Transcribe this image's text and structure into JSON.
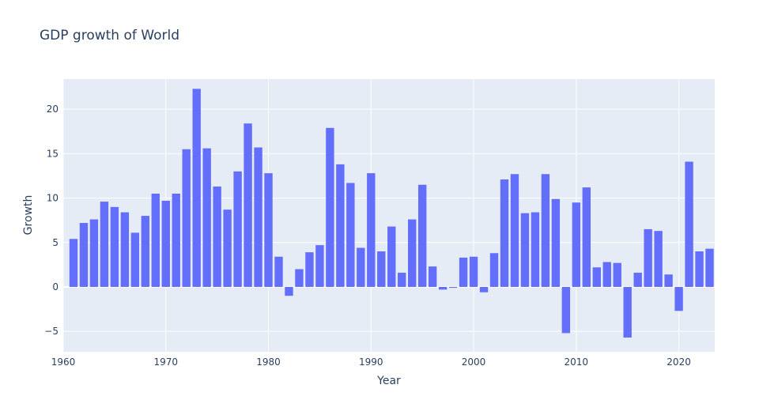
{
  "chart_data": {
    "type": "bar",
    "title": "GDP growth of World",
    "xlabel": "Year",
    "ylabel": "Growth",
    "xlim": [
      1960,
      2023.5
    ],
    "ylim": [
      -7.3,
      23.4
    ],
    "xticks": [
      1960,
      1970,
      1980,
      1990,
      2000,
      2010,
      2020
    ],
    "yticks": [
      -5,
      0,
      5,
      10,
      15,
      20
    ],
    "ytick_labels": [
      "−5",
      "0",
      "5",
      "10",
      "15",
      "20"
    ],
    "grid": true,
    "bar_color": "#636efa",
    "plot_bg": "#e5ecf6",
    "x": [
      1961,
      1962,
      1963,
      1964,
      1965,
      1966,
      1967,
      1968,
      1969,
      1970,
      1971,
      1972,
      1973,
      1974,
      1975,
      1976,
      1977,
      1978,
      1979,
      1980,
      1981,
      1982,
      1983,
      1984,
      1985,
      1986,
      1987,
      1988,
      1989,
      1990,
      1991,
      1992,
      1993,
      1994,
      1995,
      1996,
      1997,
      1998,
      1999,
      2000,
      2001,
      2002,
      2003,
      2004,
      2005,
      2006,
      2007,
      2008,
      2009,
      2010,
      2011,
      2012,
      2013,
      2014,
      2015,
      2016,
      2017,
      2018,
      2019,
      2020,
      2021,
      2022,
      2023
    ],
    "values": [
      5.4,
      7.2,
      7.6,
      9.6,
      9.0,
      8.4,
      6.1,
      8.0,
      10.5,
      9.7,
      10.5,
      15.5,
      22.3,
      15.6,
      11.3,
      8.7,
      13.0,
      18.4,
      15.7,
      12.8,
      3.4,
      -1.0,
      2.0,
      3.9,
      4.7,
      17.9,
      13.8,
      11.7,
      4.4,
      12.8,
      4.0,
      6.8,
      1.6,
      7.6,
      11.5,
      2.3,
      -0.3,
      -0.1,
      3.3,
      3.4,
      -0.6,
      3.8,
      12.1,
      12.7,
      8.3,
      8.4,
      12.7,
      9.9,
      -5.2,
      9.5,
      11.2,
      2.2,
      2.8,
      2.7,
      -5.7,
      1.6,
      6.5,
      6.3,
      1.4,
      -2.7,
      14.1,
      4.0,
      4.3
    ]
  }
}
